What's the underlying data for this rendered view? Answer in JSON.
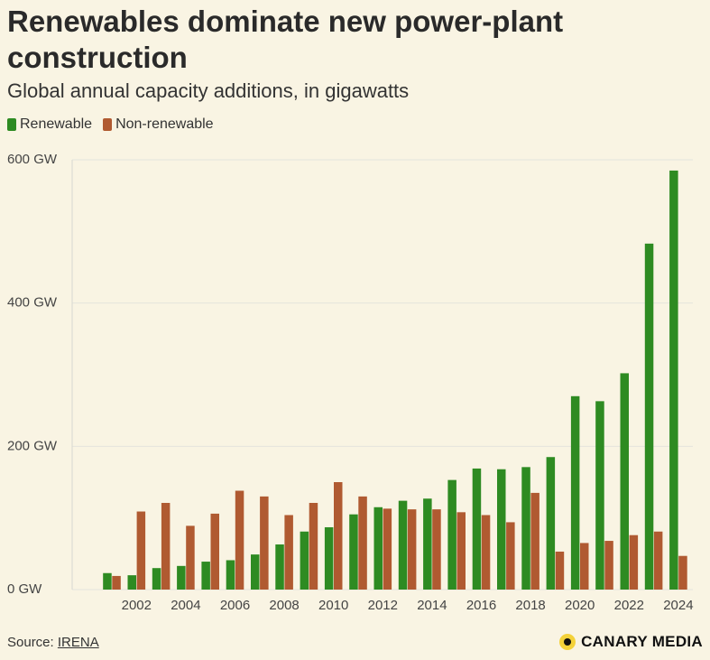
{
  "header": {
    "title": "Renewables dominate new power-plant construction",
    "subtitle": "Global annual capacity additions, in gigawatts"
  },
  "legend": [
    {
      "label": "Renewable",
      "color": "#2e8b22"
    },
    {
      "label": "Non-renewable",
      "color": "#b05a31"
    }
  ],
  "footer": {
    "source_prefix": "Source: ",
    "source_link": "IRENA",
    "brand": "CANARY MEDIA"
  },
  "chart_data": {
    "type": "bar",
    "title": "Renewables dominate new power-plant construction",
    "subtitle": "Global annual capacity additions, in gigawatts",
    "xlabel": "",
    "ylabel": "",
    "ylim": [
      0,
      600
    ],
    "yticks": [
      0,
      200,
      400,
      600
    ],
    "ytick_labels": [
      "0 GW",
      "200 GW",
      "400 GW",
      "600 GW"
    ],
    "categories": [
      2001,
      2002,
      2003,
      2004,
      2005,
      2006,
      2007,
      2008,
      2009,
      2010,
      2011,
      2012,
      2013,
      2014,
      2015,
      2016,
      2017,
      2018,
      2019,
      2020,
      2021,
      2022,
      2023,
      2024
    ],
    "xtick_labels": [
      "2002",
      "2004",
      "2006",
      "2008",
      "2010",
      "2012",
      "2014",
      "2016",
      "2018",
      "2020",
      "2022",
      "2024"
    ],
    "series": [
      {
        "name": "Renewable",
        "color": "#2e8b22",
        "values": [
          23,
          20,
          30,
          33,
          39,
          41,
          49,
          63,
          81,
          87,
          105,
          115,
          124,
          127,
          153,
          169,
          168,
          171,
          185,
          270,
          263,
          302,
          483,
          585
        ]
      },
      {
        "name": "Non-renewable",
        "color": "#b05a31",
        "values": [
          19,
          109,
          121,
          89,
          106,
          138,
          130,
          104,
          121,
          150,
          130,
          113,
          112,
          112,
          108,
          104,
          94,
          135,
          53,
          65,
          68,
          76,
          81,
          47
        ]
      }
    ],
    "grid": true,
    "legend_position": "top-left"
  }
}
